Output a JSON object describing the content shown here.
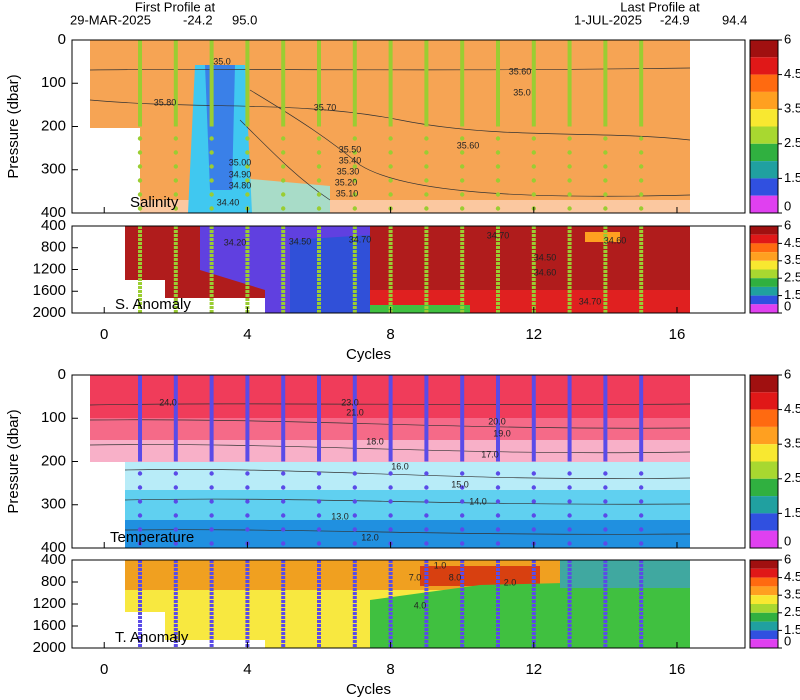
{
  "header": {
    "first_label": "First Profile at",
    "first_date": "29-MAR-2025",
    "first_lat": "-24.2",
    "first_lon": "95.0",
    "last_label": "Last Profile at",
    "last_date": "1-JUL-2025",
    "last_lat": "-24.9",
    "last_lon": "94.4"
  },
  "colorbar": {
    "ticks": [
      6,
      4.5,
      3.5,
      2.5,
      1.5,
      0
    ],
    "colors": [
      "#a01010",
      "#e01818",
      "#ff6a10",
      "#ffa020",
      "#f8e830",
      "#a8d830",
      "#30b040",
      "#20a0a0",
      "#3050e0",
      "#e040f0"
    ]
  },
  "chart_data": [
    {
      "type": "contour",
      "ylabel": "Pressure (dbar)",
      "label": "Salinity",
      "xlim": [
        -0.9,
        17.9
      ],
      "ylim": [
        0,
        400
      ],
      "yticks": [
        0,
        100,
        200,
        300,
        400
      ],
      "xticks": [
        0,
        4,
        8,
        12,
        16
      ],
      "profiles": [
        1,
        2,
        3,
        4,
        5,
        6,
        7,
        8,
        9,
        10,
        11,
        12,
        13,
        14,
        15
      ],
      "profile_color": "#9acd32",
      "annotations": [
        "35.0",
        "35.80",
        "35.70",
        "35.60",
        "35.60",
        "35.0",
        "35.50",
        "35.40",
        "35.30",
        "35.20",
        "35.10",
        "35.00",
        "34.90",
        "34.80",
        "34.40"
      ]
    },
    {
      "type": "contour",
      "label": "S. Anomaly",
      "xlabel": "Cycles",
      "xlim": [
        -0.9,
        17.9
      ],
      "ylim": [
        400,
        2000
      ],
      "yticks": [
        400,
        800,
        1200,
        1600,
        2000
      ],
      "xticks": [
        0,
        4,
        8,
        12,
        16
      ],
      "profiles": [
        1,
        2,
        3,
        4,
        5,
        6,
        7,
        8,
        9,
        10,
        11,
        12,
        13,
        14,
        15
      ],
      "profile_color": "#9acd32",
      "annotations": [
        "34.20",
        "34.50",
        "34.70",
        "34.70",
        "34.60",
        "34.60",
        "34.50",
        "34.70"
      ]
    },
    {
      "type": "contour",
      "ylabel": "Pressure (dbar)",
      "label": "Temperature",
      "xlim": [
        -0.9,
        17.9
      ],
      "ylim": [
        0,
        400
      ],
      "yticks": [
        0,
        100,
        200,
        300,
        400
      ],
      "xticks": [
        0,
        4,
        8,
        12,
        16
      ],
      "profiles": [
        1,
        2,
        3,
        4,
        5,
        6,
        7,
        8,
        9,
        10,
        11,
        12,
        13,
        14,
        15
      ],
      "profile_color": "#5a4be8",
      "annotations": [
        "24.0",
        "23.0",
        "21.0",
        "20.0",
        "19.0",
        "18.0",
        "17.0",
        "16.0",
        "15.0",
        "14.0",
        "13.0",
        "12.0"
      ]
    },
    {
      "type": "contour",
      "label": "T. Anomaly",
      "xlabel": "Cycles",
      "xlim": [
        -0.9,
        17.9
      ],
      "ylim": [
        400,
        2000
      ],
      "yticks": [
        400,
        800,
        1200,
        1600,
        2000
      ],
      "xticks": [
        0,
        4,
        8,
        12,
        16
      ],
      "profiles": [
        1,
        2,
        3,
        4,
        5,
        6,
        7,
        8,
        9,
        10,
        11,
        12,
        13,
        14,
        15
      ],
      "profile_color": "#5a4be8",
      "annotations": [
        "1.0",
        "7.0",
        "8.0",
        "2.0",
        "4.0"
      ]
    }
  ]
}
